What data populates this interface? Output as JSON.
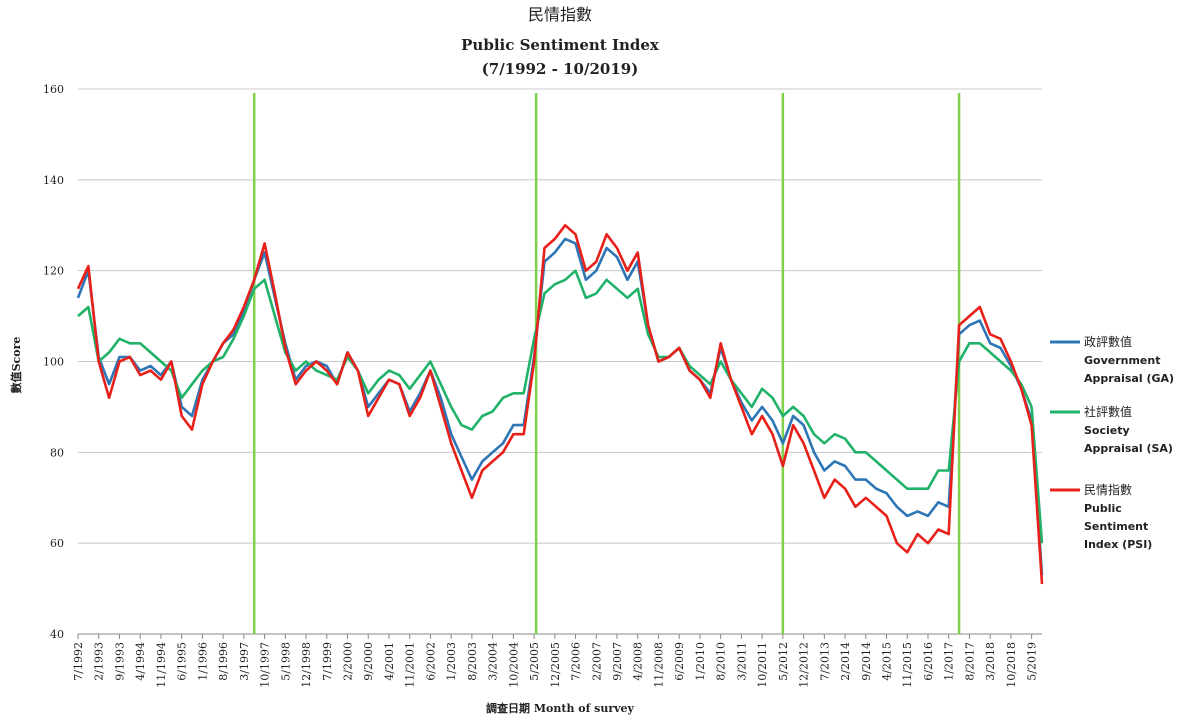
{
  "chart_data": {
    "type": "line",
    "title": "民情指數",
    "subtitle": "Public Sentiment Index",
    "date_range": "(7/1992 - 10/2019)",
    "y_label": "數值Score",
    "x_label": "調查日期 Month of survey",
    "categories": [
      "7/1992",
      null,
      "2/1993",
      null,
      "9/1993",
      null,
      "4/1994",
      null,
      "11/1994",
      null,
      "6/1995",
      null,
      "1/1996",
      null,
      "8/1996",
      null,
      "3/1997",
      null,
      "10/1997",
      null,
      "5/1998",
      null,
      "12/1998",
      null,
      "7/1999",
      null,
      "2/2000",
      null,
      "9/2000",
      null,
      "4/2001",
      null,
      "11/2001",
      null,
      "6/2002",
      null,
      "1/2003",
      null,
      "8/2003",
      null,
      "3/2004",
      null,
      "10/2004",
      null,
      "5/2005",
      null,
      "12/2005",
      null,
      "7/2006",
      null,
      "2/2007",
      null,
      "9/2007",
      null,
      "4/2008",
      null,
      "11/2008",
      null,
      "6/2009",
      null,
      "1/2010",
      null,
      "8/2010",
      null,
      "3/2011",
      null,
      "10/2011",
      null,
      "5/2012",
      null,
      "12/2012",
      null,
      "7/2013",
      null,
      "2/2014",
      null,
      "9/2014",
      null,
      "4/2015",
      null,
      "11/2015",
      null,
      "6/2016",
      null,
      "1/2017",
      null,
      "8/2017",
      null,
      "3/2018",
      null,
      "10/2018",
      null,
      "5/2019",
      null
    ],
    "series": [
      {
        "name": "政評數值\nGovernment\nAppraisal (GA)",
        "color": "#2e75b6",
        "values": [
          114,
          120,
          101,
          95,
          101,
          101,
          98,
          99,
          97,
          100,
          90,
          88,
          96,
          100,
          104,
          106,
          111,
          118,
          124,
          114,
          104,
          96,
          99,
          100,
          99,
          95,
          102,
          98,
          90,
          93,
          96,
          95,
          89,
          93,
          98,
          92,
          84,
          79,
          74,
          78,
          80,
          82,
          86,
          86,
          101,
          122,
          124,
          127,
          126,
          118,
          120,
          125,
          123,
          118,
          122,
          108,
          100,
          101,
          103,
          98,
          96,
          93,
          103,
          96,
          91,
          87,
          90,
          87,
          82,
          88,
          86,
          80,
          76,
          78,
          77,
          74,
          74,
          72,
          71,
          68,
          66,
          67,
          66,
          69,
          68,
          106,
          108,
          109,
          104,
          103,
          99,
          94,
          87,
          53
        ]
      },
      {
        "name": "社評數值\nSociety\nAppraisal (SA)",
        "color": "#21b26a",
        "values": [
          110,
          112,
          100,
          102,
          105,
          104,
          104,
          102,
          100,
          98,
          92,
          95,
          98,
          100,
          101,
          105,
          110,
          116,
          118,
          110,
          102,
          98,
          100,
          98,
          97,
          96,
          101,
          98,
          93,
          96,
          98,
          97,
          94,
          97,
          100,
          95,
          90,
          86,
          85,
          88,
          89,
          92,
          93,
          93,
          105,
          115,
          117,
          118,
          120,
          114,
          115,
          118,
          116,
          114,
          116,
          106,
          101,
          101,
          103,
          99,
          97,
          95,
          100,
          96,
          93,
          90,
          94,
          92,
          88,
          90,
          88,
          84,
          82,
          84,
          83,
          80,
          80,
          78,
          76,
          74,
          72,
          72,
          72,
          76,
          76,
          100,
          104,
          104,
          102,
          100,
          98,
          95,
          90,
          60
        ]
      },
      {
        "name": "民情指數\nPublic\nSentiment\nIndex (PSI)",
        "color": "#e8201a",
        "values": [
          116,
          121,
          100,
          92,
          100,
          101,
          97,
          98,
          96,
          100,
          88,
          85,
          95,
          100,
          104,
          107,
          112,
          118,
          126,
          115,
          103,
          95,
          98,
          100,
          98,
          95,
          102,
          98,
          88,
          92,
          96,
          95,
          88,
          92,
          98,
          90,
          82,
          76,
          70,
          76,
          78,
          80,
          84,
          84,
          100,
          125,
          127,
          130,
          128,
          120,
          122,
          128,
          125,
          120,
          124,
          108,
          100,
          101,
          103,
          98,
          96,
          92,
          104,
          96,
          90,
          84,
          88,
          84,
          77,
          86,
          82,
          76,
          70,
          74,
          72,
          68,
          70,
          68,
          66,
          60,
          58,
          62,
          60,
          63,
          62,
          108,
          110,
          112,
          106,
          105,
          100,
          94,
          86,
          51
        ]
      }
    ],
    "ylim": [
      40,
      160
    ],
    "yticks": [
      40,
      60,
      80,
      100,
      120,
      140,
      160
    ],
    "grid": true,
    "legend": "right"
  }
}
